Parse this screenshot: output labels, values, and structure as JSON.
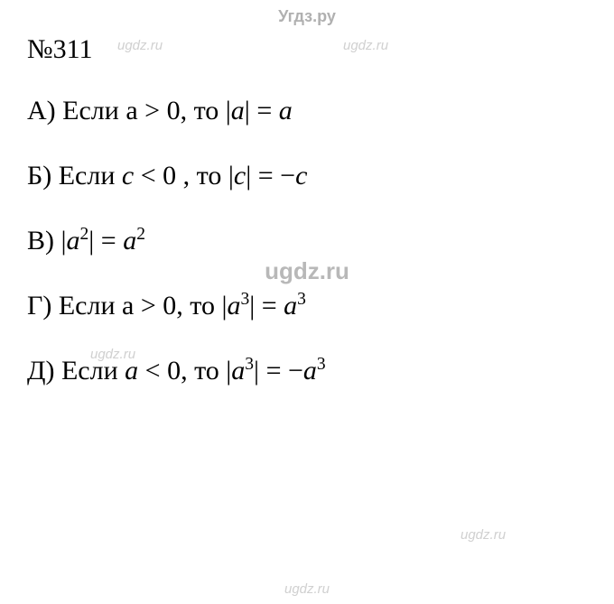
{
  "watermarks": {
    "site_name": "Угдз.ру",
    "site_domain": "ugdz.ru"
  },
  "problem": {
    "number": "№311",
    "items": {
      "a": {
        "label": "А)",
        "prefix": "Если а",
        "condition_op": ">",
        "condition_val": "0",
        "mid": ", то",
        "abs_inner": "a",
        "eq": "=",
        "result": "a"
      },
      "b": {
        "label": "Б)",
        "prefix": "Если",
        "var": "c",
        "condition_op": "<",
        "condition_val": "0",
        "mid": ", то",
        "abs_inner": "c",
        "eq": "=",
        "minus": "−",
        "result": "c"
      },
      "v": {
        "label": "В)",
        "abs_inner_base": "a",
        "abs_inner_exp": "2",
        "eq": "=",
        "result_base": "a",
        "result_exp": "2"
      },
      "g": {
        "label": "Г)",
        "prefix": "Если а",
        "condition_op": ">",
        "condition_val": "0",
        "mid": ", то",
        "abs_inner_base": "a",
        "abs_inner_exp": "3",
        "eq": "=",
        "result_base": "a",
        "result_exp": "3"
      },
      "d": {
        "label": "Д)",
        "prefix": "Если",
        "var": "a",
        "condition_op": "<",
        "condition_val": "0",
        "mid": ", то",
        "abs_inner_base": "a",
        "abs_inner_exp": "3",
        "eq": "=",
        "minus": "−",
        "result_base": "a",
        "result_exp": "3"
      }
    }
  },
  "styling": {
    "background_color": "#ffffff",
    "text_color": "#000000",
    "watermark_color_light": "#d0d0d0",
    "watermark_color_bold": "#b8b8b8",
    "font_family": "Times New Roman",
    "body_font_size": 30,
    "number_font_size": 30,
    "watermark_font_size_small": 15,
    "watermark_font_size_top": 18,
    "watermark_font_size_bold": 26,
    "line_spacing": 38
  }
}
